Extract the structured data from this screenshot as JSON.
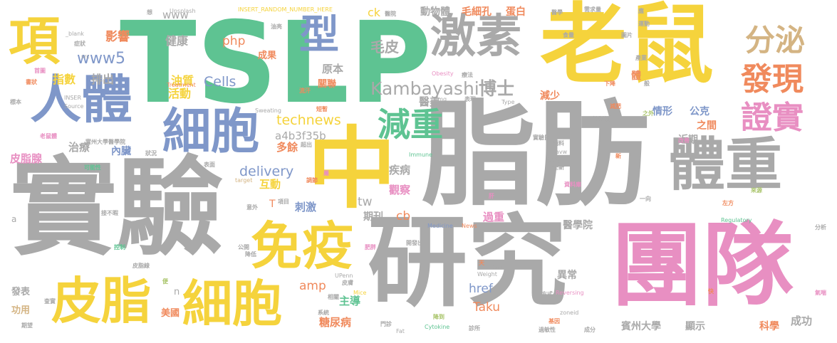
{
  "palette": {
    "gray": "#a9a9a9",
    "yellow": "#f5d33c",
    "green": "#5ec392",
    "blue": "#7f97c9",
    "pink": "#e88fc2",
    "orange": "#f08a5d",
    "olive": "#a9c46a",
    "tan": "#d4b483"
  },
  "words": [
    {
      "text": "TSLP",
      "color": "green",
      "weight": 1.0
    },
    {
      "text": "老鼠",
      "color": "yellow",
      "weight": 0.95
    },
    {
      "text": "脂肪",
      "color": "gray",
      "weight": 0.95
    },
    {
      "text": "實驗",
      "color": "gray",
      "weight": 0.9
    },
    {
      "text": "研究",
      "color": "gray",
      "weight": 0.85
    },
    {
      "text": "團隊",
      "color": "pink",
      "weight": 0.8
    },
    {
      "text": "中",
      "color": "yellow",
      "weight": 0.75
    },
    {
      "text": "體重",
      "color": "gray",
      "weight": 0.6
    },
    {
      "text": "激素",
      "color": "gray",
      "weight": 0.55
    },
    {
      "text": "細胞",
      "color": "blue",
      "weight": 0.5
    },
    {
      "text": "細胞",
      "color": "yellow",
      "weight": 0.5
    },
    {
      "text": "皮脂",
      "color": "yellow",
      "weight": 0.5
    },
    {
      "text": "免疫",
      "color": "yellow",
      "weight": 0.5
    },
    {
      "text": "人體",
      "color": "blue",
      "weight": 0.5
    },
    {
      "text": "項",
      "color": "yellow",
      "weight": 0.45
    },
    {
      "text": "型",
      "color": "blue",
      "weight": 0.4
    },
    {
      "text": "分泌",
      "color": "tan",
      "weight": 0.4
    },
    {
      "text": "發現",
      "color": "orange",
      "weight": 0.35
    },
    {
      "text": "證實",
      "color": "pink",
      "weight": 0.35
    },
    {
      "text": "減重",
      "color": "green",
      "weight": 0.35
    },
    {
      "text": "Kambayashi",
      "color": "gray",
      "weight": 0.3
    },
    {
      "text": "博士",
      "color": "gray",
      "weight": 0.3
    },
    {
      "text": "delivery",
      "color": "blue",
      "weight": 0.25
    },
    {
      "text": "technews",
      "color": "yellow",
      "weight": 0.25
    },
    {
      "text": "Cells",
      "color": "blue",
      "weight": 0.25
    },
    {
      "text": "毛皮",
      "color": "gray",
      "weight": 0.25
    },
    {
      "text": "www5",
      "color": "blue",
      "weight": 0.25
    },
    {
      "text": "www",
      "color": "gray",
      "weight": 0.2
    },
    {
      "text": "php",
      "color": "orange",
      "weight": 0.2
    },
    {
      "text": "amp",
      "color": "orange",
      "weight": 0.2
    },
    {
      "text": "Taku",
      "color": "orange",
      "weight": 0.2
    },
    {
      "text": "href",
      "color": "blue",
      "weight": 0.2
    },
    {
      "text": "tw",
      "color": "gray",
      "weight": 0.2
    },
    {
      "text": "cb",
      "color": "orange",
      "weight": 0.2
    },
    {
      "text": "ck",
      "color": "yellow",
      "weight": 0.2
    },
    {
      "text": "a4b3f35b",
      "color": "gray",
      "weight": 0.2
    },
    {
      "text": "影響",
      "color": "orange",
      "weight": 0.2
    },
    {
      "text": "排出",
      "color": "gray",
      "weight": 0.2
    },
    {
      "text": "指數",
      "color": "yellow",
      "weight": 0.2
    },
    {
      "text": "健康",
      "color": "gray",
      "weight": 0.2
    },
    {
      "text": "油質",
      "color": "yellow",
      "weight": 0.2
    },
    {
      "text": "活動",
      "color": "yellow",
      "weight": 0.2
    },
    {
      "text": "成果",
      "color": "orange",
      "weight": 0.15
    },
    {
      "text": "關聯",
      "color": "orange",
      "weight": 0.15
    },
    {
      "text": "原本",
      "color": "gray",
      "weight": 0.2
    },
    {
      "text": "醫美",
      "color": "gray",
      "weight": 0.2
    },
    {
      "text": "動物體",
      "color": "gray",
      "weight": 0.2
    },
    {
      "text": "毛細孔",
      "color": "orange",
      "weight": 0.2
    },
    {
      "text": "蛋白",
      "color": "orange",
      "weight": 0.2
    },
    {
      "text": "減少",
      "color": "orange",
      "weight": 0.15
    },
    {
      "text": "情形",
      "color": "blue",
      "weight": 0.2
    },
    {
      "text": "公克",
      "color": "blue",
      "weight": 0.2
    },
    {
      "text": "之間",
      "color": "orange",
      "weight": 0.2
    },
    {
      "text": "近期",
      "color": "gray",
      "weight": 0.2
    },
    {
      "text": "體",
      "color": "orange",
      "weight": 0.2
    },
    {
      "text": "治療",
      "color": "gray",
      "weight": 0.2
    },
    {
      "text": "內臟",
      "color": "blue",
      "weight": 0.2
    },
    {
      "text": "皮脂腺",
      "color": "pink",
      "weight": 0.2
    },
    {
      "text": "多餘",
      "color": "orange",
      "weight": 0.2
    },
    {
      "text": "互動",
      "color": "yellow",
      "weight": 0.2
    },
    {
      "text": "疾病",
      "color": "gray",
      "weight": 0.2
    },
    {
      "text": "觀察",
      "color": "pink",
      "weight": 0.2
    },
    {
      "text": "刺激",
      "color": "blue",
      "weight": 0.2
    },
    {
      "text": "T",
      "color": "orange",
      "weight": 0.2
    },
    {
      "text": "期刊",
      "color": "gray",
      "weight": 0.2
    },
    {
      "text": "過重",
      "color": "pink",
      "weight": 0.2
    },
    {
      "text": "醫學院",
      "color": "gray",
      "weight": 0.2
    },
    {
      "text": "異常",
      "color": "gray",
      "weight": 0.2
    },
    {
      "text": "主導",
      "color": "green",
      "weight": 0.2
    },
    {
      "text": "糖尿病",
      "color": "orange",
      "weight": 0.2
    },
    {
      "text": "賓州大學",
      "color": "gray",
      "weight": 0.2
    },
    {
      "text": "顯示",
      "color": "gray",
      "weight": 0.2
    },
    {
      "text": "科學",
      "color": "orange",
      "weight": 0.2
    },
    {
      "text": "成功",
      "color": "gray",
      "weight": 0.2
    },
    {
      "text": "發表",
      "color": "gray",
      "weight": 0.15
    },
    {
      "text": "功用",
      "color": "tan",
      "weight": 0.15
    },
    {
      "text": "美國",
      "color": "orange",
      "weight": 0.15
    },
    {
      "text": "n",
      "color": "gray",
      "weight": 0.15
    },
    {
      "text": "a",
      "color": "gray",
      "weight": 0.15
    },
    {
      "text": "Unsplash",
      "color": "gray",
      "weight": 0.1
    },
    {
      "text": "INSERT_RANDOM_NUMBER_HERE",
      "color": "yellow",
      "weight": 0.1
    },
    {
      "text": "_blank",
      "color": "gray",
      "weight": 0.1
    },
    {
      "text": "src",
      "color": "gray",
      "weight": 0.1
    },
    {
      "text": "Obesity",
      "color": "pink",
      "weight": 0.1
    },
    {
      "text": "Treatment",
      "color": "orange",
      "weight": 0.1
    },
    {
      "text": "Sweating",
      "color": "gray",
      "weight": 0.1
    },
    {
      "text": "Source",
      "color": "gray",
      "weight": 0.1
    },
    {
      "text": "INSER",
      "color": "gray",
      "weight": 0.1
    },
    {
      "text": "img",
      "color": "gray",
      "weight": 0.1
    },
    {
      "text": "Type",
      "color": "gray",
      "weight": 0.1
    },
    {
      "text": "Immune",
      "color": "green",
      "weight": 0.1
    },
    {
      "text": "Medicine",
      "color": "blue",
      "weight": 0.1
    },
    {
      "text": "News",
      "color": "orange",
      "weight": 0.1
    },
    {
      "text": "Regulatory",
      "color": "green",
      "weight": 0.1
    },
    {
      "text": "Weight",
      "color": "gray",
      "weight": 0.1
    },
    {
      "text": "Lose",
      "color": "gray",
      "weight": 0.1
    },
    {
      "text": "UPenn",
      "color": "gray",
      "weight": 0.1
    },
    {
      "text": "Mice",
      "color": "yellow",
      "weight": 0.1
    },
    {
      "text": "Cytokine",
      "color": "green",
      "weight": 0.1
    },
    {
      "text": "Fat",
      "color": "gray",
      "weight": 0.1
    },
    {
      "text": "Reversing",
      "color": "pink",
      "weight": 0.1
    },
    {
      "text": "zoneid",
      "color": "gray",
      "weight": 0.1
    },
    {
      "text": "avw",
      "color": "gray",
      "weight": 0.1
    },
    {
      "text": "target",
      "color": "tan",
      "weight": 0.1
    },
    {
      "text": "醫院",
      "color": "gray",
      "weight": 0.1
    },
    {
      "text": "醫學",
      "color": "gray",
      "weight": 0.1
    },
    {
      "text": "需求量",
      "color": "gray",
      "weight": 0.1
    },
    {
      "text": "應",
      "color": "gray",
      "weight": 0.1
    },
    {
      "text": "運動",
      "color": "gray",
      "weight": 0.1
    },
    {
      "text": "圖片",
      "color": "gray",
      "weight": 0.1
    },
    {
      "text": "食量",
      "color": "gray",
      "weight": 0.1
    },
    {
      "text": "產業",
      "color": "gray",
      "weight": 0.1
    },
    {
      "text": "下降",
      "color": "orange",
      "weight": 0.1
    },
    {
      "text": "般",
      "color": "gray",
      "weight": 0.1
    },
    {
      "text": "控制組",
      "color": "gray",
      "weight": 0.1
    },
    {
      "text": "減肥",
      "color": "orange",
      "weight": 0.1
    },
    {
      "text": "之外",
      "color": "olive",
      "weight": 0.1
    },
    {
      "text": "症狀",
      "color": "gray",
      "weight": 0.1
    },
    {
      "text": "首圖",
      "color": "pink",
      "weight": 0.1
    },
    {
      "text": "書狀",
      "color": "orange",
      "weight": 0.1
    },
    {
      "text": "標本",
      "color": "gray",
      "weight": 0.1
    },
    {
      "text": "老鼠體",
      "color": "pink",
      "weight": 0.1
    },
    {
      "text": "實州大學醫學院",
      "color": "gray",
      "weight": 0.1
    },
    {
      "text": "可能性",
      "color": "green",
      "weight": 0.1
    },
    {
      "text": "狀況",
      "color": "gray",
      "weight": 0.1
    },
    {
      "text": "表面",
      "color": "gray",
      "weight": 0.1
    },
    {
      "text": "油亮",
      "color": "gray",
      "weight": 0.1
    },
    {
      "text": "短暫",
      "color": "orange",
      "weight": 0.1
    },
    {
      "text": "流汗",
      "color": "orange",
      "weight": 0.1
    },
    {
      "text": "超出",
      "color": "gray",
      "weight": 0.1
    },
    {
      "text": "療法",
      "color": "gray",
      "weight": 0.1
    },
    {
      "text": "表現",
      "color": "gray",
      "weight": 0.1
    },
    {
      "text": "實驗鼠",
      "color": "gray",
      "weight": 0.1
    },
    {
      "text": "預料",
      "color": "gray",
      "weight": 0.1
    },
    {
      "text": "改善",
      "color": "pink",
      "weight": 0.1
    },
    {
      "text": "全新",
      "color": "gray",
      "weight": 0.1
    },
    {
      "text": "特地",
      "color": "gray",
      "weight": 0.1
    },
    {
      "text": "新",
      "color": "orange",
      "weight": 0.1
    },
    {
      "text": "資料庫",
      "color": "pink",
      "weight": 0.1
    },
    {
      "text": "一向",
      "color": "gray",
      "weight": 0.1
    },
    {
      "text": "來源",
      "color": "olive",
      "weight": 0.1
    },
    {
      "text": "左方",
      "color": "orange",
      "weight": 0.1
    },
    {
      "text": "分析",
      "color": "gray",
      "weight": 0.1
    },
    {
      "text": "氣喘",
      "color": "pink",
      "weight": 0.1
    },
    {
      "text": "快",
      "color": "orange",
      "weight": 0.1
    },
    {
      "text": "成分",
      "color": "gray",
      "weight": 0.1
    },
    {
      "text": "過敏性",
      "color": "gray",
      "weight": 0.1
    },
    {
      "text": "基因",
      "color": "orange",
      "weight": 0.1
    },
    {
      "text": "方式",
      "color": "gray",
      "weight": 0.1
    },
    {
      "text": "診所",
      "color": "gray",
      "weight": 0.1
    },
    {
      "text": "降到",
      "color": "olive",
      "weight": 0.1
    },
    {
      "text": "門診",
      "color": "gray",
      "weight": 0.1
    },
    {
      "text": "系統",
      "color": "gray",
      "weight": 0.1
    },
    {
      "text": "相關",
      "color": "gray",
      "weight": 0.1
    },
    {
      "text": "皮膚",
      "color": "gray",
      "weight": 0.1
    },
    {
      "text": "期望",
      "color": "gray",
      "weight": 0.1
    },
    {
      "text": "查實",
      "color": "gray",
      "weight": 0.1
    },
    {
      "text": "便",
      "color": "olive",
      "weight": 0.1
    },
    {
      "text": "皮脂線",
      "color": "gray",
      "weight": 0.1
    },
    {
      "text": "控制",
      "color": "green",
      "weight": 0.1
    },
    {
      "text": "接不暇",
      "color": "gray",
      "weight": 0.1
    },
    {
      "text": "意外",
      "color": "gray",
      "weight": 0.1
    },
    {
      "text": "項目",
      "color": "gray",
      "weight": 0.1
    },
    {
      "text": "公開",
      "color": "gray",
      "weight": 0.1
    },
    {
      "text": "降低",
      "color": "gray",
      "weight": 0.1
    },
    {
      "text": "肥胖",
      "color": "pink",
      "weight": 0.1
    },
    {
      "text": "開發出",
      "color": "gray",
      "weight": 0.1
    },
    {
      "text": "調節",
      "color": "orange",
      "weight": 0.1
    },
    {
      "text": "屬",
      "color": "pink",
      "weight": 0.1
    },
    {
      "text": "肝",
      "color": "pink",
      "weight": 0.1
    },
    {
      "text": "天",
      "color": "orange",
      "weight": 0.1
    },
    {
      "text": "想",
      "color": "gray",
      "weight": 0.1
    }
  ]
}
